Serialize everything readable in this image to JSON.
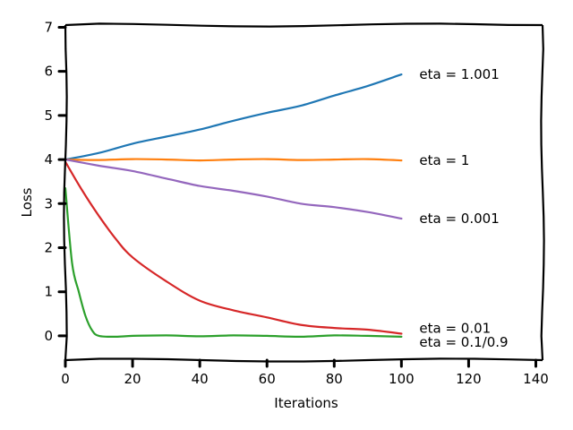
{
  "chart_data": {
    "type": "line",
    "xlabel": "Iterations",
    "ylabel": "Loss",
    "xlim": [
      0,
      142
    ],
    "ylim": [
      -0.55,
      7.05
    ],
    "xticks": [
      0,
      20,
      40,
      60,
      80,
      100,
      120,
      140
    ],
    "yticks": [
      0,
      1,
      2,
      3,
      4,
      5,
      6,
      7
    ],
    "grid": false,
    "series": [
      {
        "name": "eta = 1.001",
        "color": "#1f77b4",
        "x": [
          0,
          10,
          20,
          30,
          40,
          50,
          60,
          70,
          80,
          90,
          100
        ],
        "y": [
          4.0,
          4.15,
          4.36,
          4.52,
          4.68,
          4.88,
          5.06,
          5.22,
          5.45,
          5.67,
          5.93
        ]
      },
      {
        "name": "eta = 1",
        "color": "#ff7f0e",
        "x": [
          0,
          10,
          20,
          30,
          40,
          50,
          60,
          70,
          80,
          90,
          100
        ],
        "y": [
          4.0,
          3.99,
          4.01,
          4.0,
          3.98,
          4.0,
          4.01,
          3.99,
          4.0,
          4.01,
          3.98
        ]
      },
      {
        "name": "eta = 0.001",
        "color": "#9467bd",
        "x": [
          0,
          10,
          20,
          30,
          40,
          50,
          60,
          70,
          80,
          90,
          100
        ],
        "y": [
          4.0,
          3.86,
          3.74,
          3.57,
          3.4,
          3.29,
          3.16,
          3.0,
          2.92,
          2.81,
          2.66
        ]
      },
      {
        "name": "eta = 0.01",
        "color": "#d62728",
        "x": [
          0,
          5,
          10,
          15,
          20,
          30,
          40,
          50,
          60,
          70,
          80,
          90,
          100
        ],
        "y": [
          3.95,
          3.3,
          2.72,
          2.2,
          1.78,
          1.24,
          0.8,
          0.58,
          0.42,
          0.25,
          0.18,
          0.14,
          0.05
        ]
      },
      {
        "name": "eta = 0.1/0.9",
        "color": "#2ca02c",
        "x": [
          0,
          2,
          4,
          6,
          8,
          10,
          15,
          20,
          30,
          40,
          50,
          60,
          70,
          80,
          90,
          100
        ],
        "y": [
          3.35,
          1.65,
          1.0,
          0.45,
          0.12,
          0.0,
          -0.02,
          0.0,
          0.01,
          -0.01,
          0.01,
          0.0,
          -0.02,
          0.01,
          0.0,
          -0.02
        ]
      }
    ]
  }
}
